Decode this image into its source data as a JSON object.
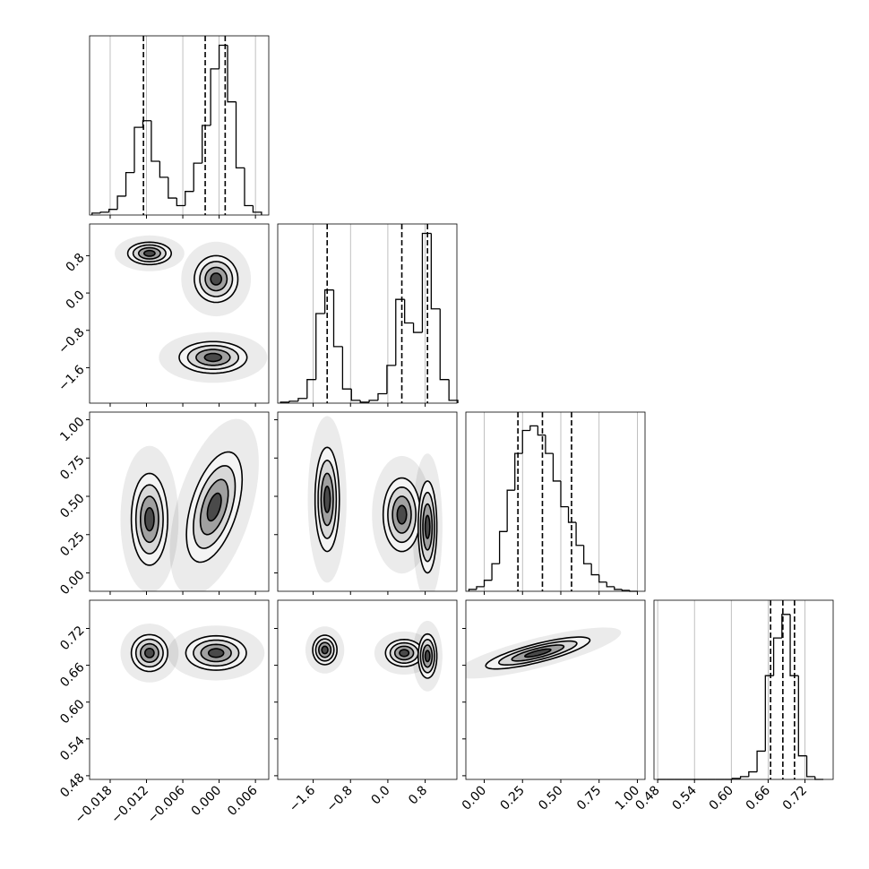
{
  "chart_data": {
    "type": "corner",
    "params": [
      {
        "lim": [
          -0.0214,
          0.0082
        ],
        "ticks": [
          {
            "value": -0.018,
            "label": "−0.018"
          },
          {
            "value": -0.012,
            "label": "−0.012"
          },
          {
            "value": -0.006,
            "label": "−0.006"
          },
          {
            "value": 0,
            "label": "0.000"
          },
          {
            "value": 0.006,
            "label": "0.006"
          }
        ],
        "bins": [
          -0.021,
          -0.0196,
          -0.0182,
          -0.0168,
          -0.0154,
          -0.014,
          -0.0126,
          -0.0112,
          -0.0098,
          -0.0084,
          -0.007,
          -0.0056,
          -0.0042,
          -0.0028,
          -0.0014,
          0,
          0.0014,
          0.0028,
          0.0042,
          0.0056,
          0.007
        ],
        "counts": [
          2,
          3,
          6,
          20,
          45,
          93,
          100,
          57,
          40,
          18,
          10,
          25,
          55,
          95,
          155,
          180,
          120,
          50,
          10,
          3
        ],
        "hist_ylim": [
          0,
          190
        ],
        "quantiles": [
          -0.0125,
          -0.0023,
          0.001
        ]
      },
      {
        "lim": [
          -2.36,
          1.48
        ],
        "ticks": [
          {
            "value": -1.6,
            "label": "−1.6"
          },
          {
            "value": -0.8,
            "label": "−0.8"
          },
          {
            "value": 0,
            "label": "0.0"
          },
          0.8
        ],
        "bins": [
          -2.3,
          -2.11,
          -1.92,
          -1.73,
          -1.54,
          -1.35,
          -1.16,
          -0.97,
          -0.78,
          -0.59,
          -0.4,
          -0.21,
          -0.02,
          0.17,
          0.36,
          0.55,
          0.74,
          0.93,
          1.12,
          1.31,
          1.5
        ],
        "counts": [
          1,
          2,
          5,
          25,
          95,
          120,
          60,
          15,
          3,
          1,
          3,
          10,
          40,
          110,
          85,
          75,
          180,
          100,
          25,
          3
        ],
        "hist_ylim": [
          0,
          190
        ],
        "quantiles": [
          -1.3,
          0.3,
          0.85
        ]
      },
      {
        "lim": [
          -0.12,
          1.05
        ],
        "ticks": [
          {
            "value": 0,
            "label": "0.00"
          },
          0.25,
          {
            "value": 0.5,
            "label": "0.50"
          },
          0.75,
          {
            "value": 1,
            "label": "1.00"
          }
        ],
        "bins": [
          -0.1,
          -0.05,
          0,
          0.05,
          0.1,
          0.15,
          0.2,
          0.25,
          0.3,
          0.35,
          0.4,
          0.45,
          0.5,
          0.55,
          0.6,
          0.65,
          0.7,
          0.75,
          0.8,
          0.85,
          0.9,
          0.95,
          1.0
        ],
        "counts": [
          2,
          5,
          12,
          30,
          65,
          110,
          150,
          175,
          180,
          170,
          150,
          120,
          92,
          75,
          50,
          30,
          18,
          10,
          5,
          2,
          1,
          0
        ],
        "hist_ylim": [
          0,
          195
        ],
        "quantiles": [
          0.22,
          0.38,
          0.57
        ]
      },
      {
        "lim": [
          0.474,
          0.766
        ],
        "ticks": [
          0.48,
          0.54,
          {
            "value": 0.6,
            "label": "0.60"
          },
          0.66,
          0.72
        ],
        "bins": [
          0.48,
          0.4935,
          0.507,
          0.5205,
          0.534,
          0.5475,
          0.561,
          0.5745,
          0.588,
          0.6015,
          0.615,
          0.6285,
          0.642,
          0.6555,
          0.669,
          0.6825,
          0.696,
          0.7095,
          0.723,
          0.7365,
          0.75
        ],
        "counts": [
          0,
          0,
          0,
          0,
          0,
          0,
          0,
          0,
          0,
          1,
          3,
          8,
          30,
          110,
          150,
          175,
          110,
          25,
          3,
          0
        ],
        "hist_ylim": [
          0,
          190
        ],
        "quantiles": [
          0.664,
          0.684,
          0.703
        ]
      }
    ],
    "pairs": [
      {
        "blobs": [
          {
            "x": -0.0115,
            "y": 0.85,
            "sx": 0.0018,
            "sy": 0.12,
            "rho": 0
          },
          {
            "x": -0.0005,
            "y": 0.3,
            "sx": 0.0018,
            "sy": 0.25,
            "rho": 0
          },
          {
            "x": -0.001,
            "y": -1.38,
            "sx": 0.0028,
            "sy": 0.17,
            "rho": 0
          }
        ]
      },
      {
        "blobs": [
          {
            "x": -0.0115,
            "y": 0.35,
            "sx": 0.0015,
            "sy": 0.15,
            "rho": 0
          },
          {
            "x": -0.0008,
            "y": 0.43,
            "sx": 0.0023,
            "sy": 0.18,
            "rho": 0.5
          }
        ]
      },
      {
        "blobs": [
          {
            "x": -1.3,
            "y": 0.48,
            "sx": 0.13,
            "sy": 0.17,
            "rho": 0
          },
          {
            "x": 0.3,
            "y": 0.38,
            "sx": 0.2,
            "sy": 0.12,
            "rho": 0
          },
          {
            "x": 0.85,
            "y": 0.3,
            "sx": 0.1,
            "sy": 0.15,
            "rho": 0
          }
        ]
      },
      {
        "blobs": [
          {
            "x": -0.0115,
            "y": 0.68,
            "sx": 0.0015,
            "sy": 0.015,
            "rho": 0
          },
          {
            "x": -0.0005,
            "y": 0.68,
            "sx": 0.0025,
            "sy": 0.014,
            "rho": 0
          }
        ]
      },
      {
        "blobs": [
          {
            "x": -1.35,
            "y": 0.685,
            "sx": 0.13,
            "sy": 0.012,
            "rho": 0
          },
          {
            "x": 0.35,
            "y": 0.68,
            "sx": 0.2,
            "sy": 0.011,
            "rho": 0
          },
          {
            "x": 0.85,
            "y": 0.675,
            "sx": 0.1,
            "sy": 0.018,
            "rho": 0
          }
        ]
      },
      {
        "blobs": [
          {
            "x": 0.35,
            "y": 0.68,
            "sx": 0.17,
            "sy": 0.013,
            "rho": 0.8
          }
        ]
      }
    ]
  }
}
